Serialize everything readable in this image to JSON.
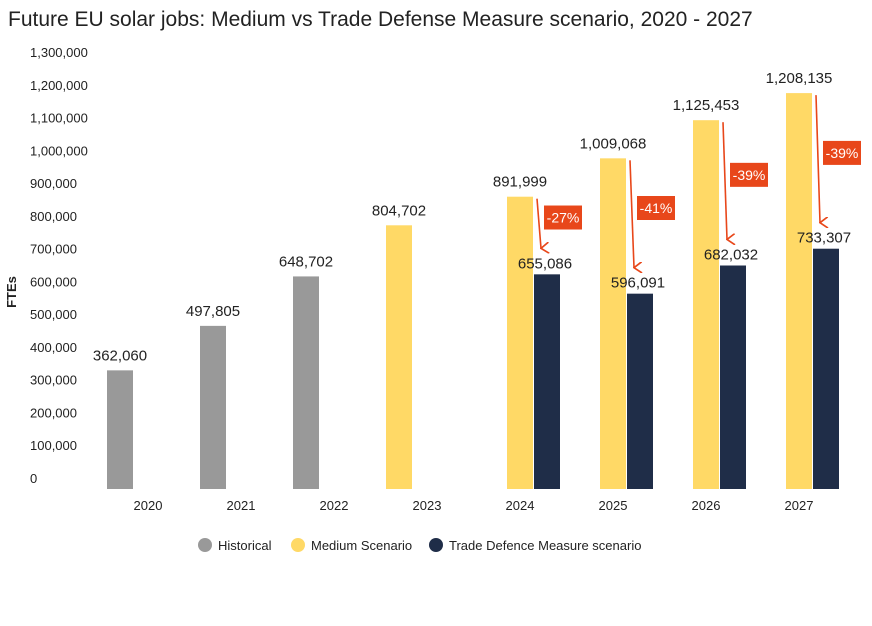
{
  "chart_data": {
    "type": "bar",
    "title": "Future EU solar jobs: Medium vs Trade Defense Measure scenario, 2020 - 2027",
    "xlabel": "",
    "ylabel": "FTEs",
    "ylim": [
      0,
      1300000
    ],
    "yticks": [
      "0",
      "100,000",
      "200,000",
      "300,000",
      "400,000",
      "500,000",
      "600,000",
      "700,000",
      "800,000",
      "900,000",
      "1,000,000",
      "1,100,000",
      "1,200,000",
      "1,300,000"
    ],
    "grid": false,
    "legend_position": "bottom",
    "categories": [
      "2020",
      "2021",
      "2022",
      "2023",
      "2024",
      "2025",
      "2026",
      "2027"
    ],
    "series": [
      {
        "name": "Historical",
        "color": "#999999",
        "values": [
          362060,
          497805,
          648702,
          null,
          null,
          null,
          null,
          null
        ],
        "labels": [
          "362,060",
          "497,805",
          "648,702",
          null,
          null,
          null,
          null,
          null
        ]
      },
      {
        "name": "Medium Scenario",
        "color": "#FFD966",
        "values": [
          null,
          null,
          null,
          804702,
          891999,
          1009068,
          1125453,
          1208135
        ],
        "labels": [
          null,
          null,
          null,
          "804,702",
          "891,999",
          "1,009,068",
          "1,125,453",
          "1,208,135"
        ]
      },
      {
        "name": "Trade Defence Measure scenario",
        "color": "#1F2D48",
        "values": [
          null,
          null,
          null,
          null,
          655086,
          596091,
          682032,
          733307
        ],
        "labels": [
          null,
          null,
          null,
          null,
          "655,086",
          "596,091",
          "682,032",
          "733,307"
        ]
      }
    ],
    "annotations": [
      {
        "category": "2024",
        "text": "-27%"
      },
      {
        "category": "2025",
        "text": "-41%"
      },
      {
        "category": "2026",
        "text": "-39%"
      },
      {
        "category": "2027",
        "text": "-39%"
      }
    ],
    "annotation_color": "#E8471A"
  }
}
